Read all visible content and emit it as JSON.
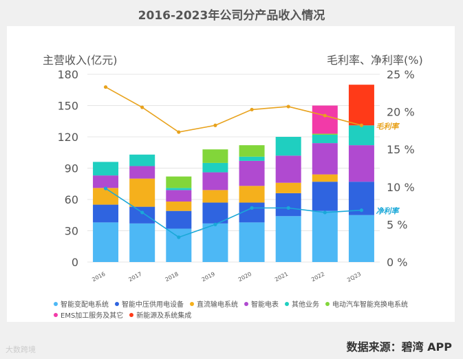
{
  "title": "2016-2023年公司分产品收入情况",
  "source": "数据来源：碧湾 APP",
  "brand": "大数跨境",
  "chart_data": {
    "type": "bar",
    "stacked": true,
    "categories": [
      "2016",
      "2017",
      "2018",
      "2019",
      "2020",
      "2021",
      "2022",
      "2Q23"
    ],
    "y_left": {
      "label": "主营收入(亿元)",
      "min": 0,
      "max": 180,
      "ticks": [
        0,
        30,
        60,
        90,
        120,
        150,
        180
      ]
    },
    "y_right": {
      "label": "毛利率、净利率(%)",
      "min": 0,
      "max": 25,
      "ticks": [
        "0 %",
        "5 %",
        "10 %",
        "15 %",
        "20 %",
        "25 %"
      ]
    },
    "series": [
      {
        "name": "智能变配电系统",
        "color": "#4db8f5",
        "values": [
          38,
          37,
          32,
          37,
          38,
          44,
          49,
          45
        ]
      },
      {
        "name": "智能中压供用电设备",
        "color": "#2f64e0",
        "values": [
          17,
          16,
          17,
          20,
          19,
          22,
          28,
          32
        ]
      },
      {
        "name": "直流输电系统",
        "color": "#f5b01c",
        "values": [
          16,
          27,
          9,
          12,
          16,
          10,
          7,
          0
        ]
      },
      {
        "name": "智能电表",
        "color": "#b04ad0",
        "values": [
          12,
          12,
          11,
          17,
          24,
          26,
          30,
          35
        ]
      },
      {
        "name": "其他业务",
        "color": "#1fcfc0",
        "values": [
          13,
          11,
          2,
          9,
          4,
          18,
          8,
          19
        ]
      },
      {
        "name": "电动汽车智能充换电系统",
        "color": "#82d63a",
        "values": [
          0,
          0,
          11,
          13,
          11,
          0,
          1,
          0
        ]
      },
      {
        "name": "EMS加工服务及其它",
        "color": "#f23aa8",
        "values": [
          0,
          0,
          0,
          0,
          0,
          0,
          27,
          0
        ]
      },
      {
        "name": "新能源及系统集成",
        "color": "#ff3a18",
        "values": [
          0,
          0,
          0,
          0,
          0,
          0,
          0,
          39
        ]
      }
    ],
    "lines": [
      {
        "name": "毛利率",
        "label": "毛利率",
        "color": "#e8a21c",
        "values": [
          23.3,
          20.6,
          17.3,
          18.2,
          20.3,
          20.7,
          19.5,
          18.2
        ]
      },
      {
        "name": "净利率",
        "label": "净利率",
        "color": "#1aa8d8",
        "values": [
          9.8,
          6.6,
          3.3,
          5.0,
          7.2,
          7.2,
          6.6,
          6.9
        ]
      }
    ]
  }
}
